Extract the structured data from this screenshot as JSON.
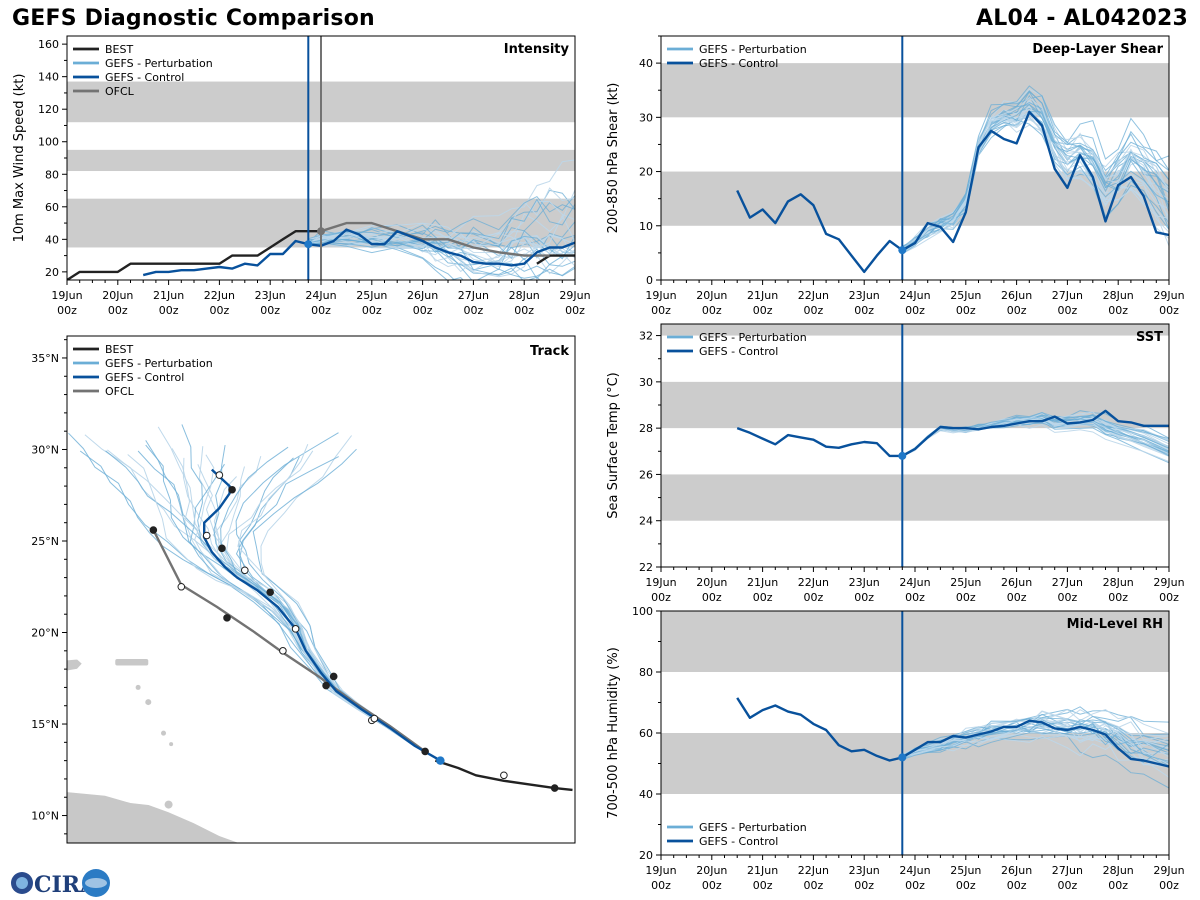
{
  "header": {
    "title": "GEFS Diagnostic Comparison",
    "storm": "AL04 - AL042023"
  },
  "logo": {
    "text": "CIRA"
  },
  "colors": {
    "best": "#222222",
    "perturbation": "#6baed6",
    "perturbation_light": "#bcd7ea",
    "control": "#08519c",
    "ofcl": "#737373",
    "band": "#cccccc",
    "land": "#c8c8c8"
  },
  "time_axis": {
    "ticks": [
      0,
      1,
      2,
      3,
      4,
      5,
      6,
      7,
      8,
      9,
      10
    ],
    "labels": [
      "19Jun",
      "20Jun",
      "21Jun",
      "22Jun",
      "23Jun",
      "24Jun",
      "25Jun",
      "26Jun",
      "27Jun",
      "28Jun",
      "29Jun"
    ],
    "sublabel": "00z",
    "current_day": 4.75,
    "ofcl_start_day": 5.0
  },
  "chart_data": [
    {
      "id": "intensity",
      "type": "line",
      "title": "Intensity",
      "ylabel": "10m Max Wind Speed (kt)",
      "ylim": [
        15,
        165
      ],
      "yticks": [
        20,
        40,
        60,
        80,
        100,
        120,
        140,
        160
      ],
      "bands": [
        [
          35,
          65
        ],
        [
          82,
          95
        ],
        [
          112,
          137
        ]
      ],
      "legend": [
        "BEST",
        "GEFS - Perturbation",
        "GEFS - Control",
        "OFCL"
      ],
      "best": {
        "x": [
          0,
          0.25,
          0.5,
          0.75,
          1,
          1.25,
          1.5,
          1.75,
          2,
          2.25,
          2.5,
          2.75,
          3,
          3.25,
          3.5,
          3.75,
          4,
          4.25,
          4.5,
          4.75,
          5
        ],
        "y": [
          15,
          20,
          20,
          20,
          20,
          25,
          25,
          25,
          25,
          25,
          25,
          25,
          25,
          30,
          30,
          30,
          35,
          40,
          45,
          45,
          45
        ]
      },
      "best_tail": {
        "x": [
          9.25,
          9.5,
          10
        ],
        "y": [
          25,
          30,
          30
        ]
      },
      "control": {
        "x": [
          1.5,
          1.75,
          2,
          2.25,
          2.5,
          2.75,
          3,
          3.25,
          3.5,
          3.75,
          4,
          4.25,
          4.5,
          4.75,
          5,
          5.25,
          5.5,
          5.75,
          6,
          6.25,
          6.5,
          6.75,
          7,
          7.25,
          7.5,
          7.75,
          8,
          8.25,
          8.5,
          8.75,
          9,
          9.25,
          9.5,
          9.75,
          10
        ],
        "y": [
          18,
          20,
          20,
          21,
          21,
          22,
          23,
          22,
          25,
          24,
          31,
          31,
          39,
          37,
          36,
          39,
          46,
          43,
          37,
          37,
          45,
          42,
          39,
          35,
          32,
          30,
          26,
          25,
          25,
          24,
          25,
          32,
          35,
          35,
          38
        ]
      },
      "ofcl": {
        "x": [
          5,
          5.5,
          6,
          6.5,
          7,
          7.5,
          8,
          8.5,
          9,
          9.5
        ],
        "y": [
          45,
          50,
          50,
          45,
          40,
          40,
          35,
          32,
          30,
          30
        ]
      },
      "perturbation_spread": {
        "center": [
          38,
          40,
          41,
          40,
          39,
          38,
          36,
          34,
          32,
          31,
          30,
          32,
          36,
          38,
          38,
          38,
          38
        ],
        "x": [
          4.75,
          5,
          5.5,
          6,
          6.5,
          7,
          7.25,
          7.5,
          7.75,
          8,
          8.5,
          8.75,
          9,
          9.25,
          9.5,
          9.75,
          10
        ],
        "spread_growth": 1.8
      }
    },
    {
      "id": "shear",
      "type": "line",
      "title": "Deep-Layer Shear",
      "ylabel": "200-850 hPa Shear (kt)",
      "ylim": [
        0,
        45
      ],
      "yticks": [
        0,
        10,
        20,
        30,
        40
      ],
      "bands": [
        [
          10,
          20
        ],
        [
          30,
          40
        ]
      ],
      "legend": [
        "GEFS - Perturbation",
        "GEFS - Control"
      ],
      "control": {
        "x": [
          1.5,
          1.75,
          2,
          2.25,
          2.5,
          2.75,
          3,
          3.25,
          3.5,
          3.75,
          4,
          4.25,
          4.5,
          4.75,
          5,
          5.25,
          5.5,
          5.75,
          6,
          6.25,
          6.5,
          6.75,
          7,
          7.25,
          7.5,
          7.75,
          8,
          8.25,
          8.5,
          8.75,
          9,
          9.25,
          9.5,
          9.75,
          10
        ],
        "y": [
          16.5,
          11.5,
          13,
          10.5,
          14.5,
          15.8,
          13.8,
          8.5,
          7.5,
          4.5,
          1.5,
          4.5,
          7.2,
          5.5,
          6.8,
          10.5,
          9.8,
          7,
          12.5,
          24.5,
          27.5,
          26,
          25.2,
          31,
          28.5,
          20.5,
          17,
          23,
          19,
          10.8,
          17.5,
          19,
          15.5,
          8.8,
          8.3
        ]
      },
      "perturbation_spread": {
        "center": [
          5.5,
          7,
          9,
          10,
          11,
          14,
          24,
          29,
          30,
          30,
          32,
          30,
          25,
          22,
          23,
          21,
          17,
          19,
          22,
          20,
          17,
          14
        ],
        "x": [
          4.75,
          5,
          5.25,
          5.5,
          5.75,
          6,
          6.25,
          6.5,
          6.75,
          7,
          7.25,
          7.5,
          7.75,
          8,
          8.25,
          8.5,
          8.75,
          9,
          9.25,
          9.5,
          9.75,
          10
        ],
        "spread_growth": 1.4
      }
    },
    {
      "id": "sst",
      "type": "line",
      "title": "SST",
      "ylabel": "Sea Surface Temp (°C)",
      "ylim": [
        22,
        32.5
      ],
      "yticks": [
        22,
        24,
        26,
        28,
        30,
        32
      ],
      "bands": [
        [
          24,
          26
        ],
        [
          28,
          30
        ],
        [
          32,
          34
        ]
      ],
      "legend": [
        "GEFS - Perturbation",
        "GEFS - Control"
      ],
      "control": {
        "x": [
          1.5,
          1.75,
          2,
          2.25,
          2.5,
          2.75,
          3,
          3.25,
          3.5,
          3.75,
          4,
          4.25,
          4.5,
          4.75,
          5,
          5.25,
          5.5,
          5.75,
          6,
          6.25,
          6.5,
          6.75,
          7,
          7.25,
          7.5,
          7.75,
          8,
          8.25,
          8.5,
          8.75,
          9,
          9.25,
          9.5,
          9.75,
          10
        ],
        "y": [
          28,
          27.8,
          27.55,
          27.3,
          27.7,
          27.6,
          27.5,
          27.2,
          27.15,
          27.3,
          27.4,
          27.35,
          26.8,
          26.8,
          27.1,
          27.6,
          28.05,
          28,
          28,
          27.95,
          28.05,
          28.1,
          28.2,
          28.3,
          28.3,
          28.5,
          28.2,
          28.25,
          28.35,
          28.75,
          28.3,
          28.25,
          28.1,
          28.1,
          28.1
        ]
      },
      "perturbation_spread": {
        "center": [
          26.8,
          27.1,
          27.6,
          28.0,
          27.9,
          27.9,
          28.0,
          28.1,
          28.2,
          28.3,
          28.3,
          28.4,
          28.2,
          28.2,
          28.3,
          28.3,
          28.0,
          27.8,
          27.5,
          27.0
        ],
        "x": [
          4.75,
          5,
          5.25,
          5.5,
          5.75,
          6,
          6.25,
          6.5,
          6.75,
          7,
          7.25,
          7.5,
          7.75,
          8,
          8.25,
          8.5,
          8.75,
          9,
          9.5,
          10
        ],
        "spread_growth": 0.35
      }
    },
    {
      "id": "rh",
      "type": "line",
      "title": "Mid-Level RH",
      "ylabel": "700-500 hPa Humidity (%)",
      "ylim": [
        20,
        100
      ],
      "yticks": [
        20,
        40,
        60,
        80,
        100
      ],
      "bands": [
        [
          40,
          60
        ],
        [
          80,
          100
        ]
      ],
      "legend": [
        "GEFS - Perturbation",
        "GEFS - Control"
      ],
      "control": {
        "x": [
          1.5,
          1.75,
          2,
          2.25,
          2.5,
          2.75,
          3,
          3.25,
          3.5,
          3.75,
          4,
          4.25,
          4.5,
          4.75,
          5,
          5.25,
          5.5,
          5.75,
          6,
          6.25,
          6.5,
          6.75,
          7,
          7.25,
          7.5,
          7.75,
          8,
          8.25,
          8.5,
          8.75,
          9,
          9.25,
          9.5,
          9.75,
          10
        ],
        "y": [
          71.5,
          65,
          67.5,
          69,
          67,
          66,
          63,
          61,
          56,
          54,
          54.5,
          52.5,
          51,
          52,
          54.5,
          57,
          57,
          59,
          58.5,
          59.5,
          60.5,
          62,
          62,
          64,
          63.5,
          61.5,
          61,
          62,
          61,
          59.5,
          55,
          51.5,
          51,
          50,
          49
        ]
      },
      "perturbation_spread": {
        "center": [
          52,
          54,
          56,
          57,
          58,
          59,
          60,
          61,
          61,
          62,
          61,
          60,
          60,
          59,
          58,
          56,
          54,
          53
        ],
        "x": [
          4.75,
          5,
          5.5,
          5.75,
          6,
          6.25,
          6.5,
          7,
          7.25,
          7.5,
          8,
          8.25,
          8.5,
          8.75,
          9,
          9.25,
          9.5,
          10
        ],
        "spread_growth": 1.2
      }
    },
    {
      "id": "track",
      "type": "line",
      "title": "Track",
      "xlim": [
        -65,
        -45
      ],
      "ylim": [
        8.5,
        36.2
      ],
      "yticks": [
        10,
        15,
        20,
        25,
        30,
        35
      ],
      "ytick_labels": [
        "10°N",
        "15°N",
        "20°N",
        "25°N",
        "30°N",
        "35°N"
      ],
      "legend": [
        "BEST",
        "GEFS - Perturbation",
        "GEFS - Control",
        "OFCL"
      ],
      "best": {
        "lon": [
          -45.1,
          -45.8,
          -46.8,
          -47.8,
          -48.9,
          -49.6,
          -50.5
        ],
        "lat": [
          11.4,
          11.5,
          11.7,
          11.9,
          12.2,
          12.6,
          13.0
        ]
      },
      "best_points": {
        "lon": [
          -45.8,
          -47.8
        ],
        "lat": [
          11.5,
          12.2
        ],
        "open": [
          false,
          true
        ]
      },
      "control": {
        "lon": [
          -50.3,
          -51.3,
          -52.3,
          -53.4,
          -54.4,
          -55.0,
          -55.6,
          -56.0,
          -56.7,
          -57.5,
          -58.3,
          -58.8,
          -59.3,
          -59.6,
          -59.6,
          -59.0,
          -58.6,
          -58.6,
          -59.3
        ],
        "lat": [
          13.0,
          13.8,
          14.8,
          15.8,
          16.8,
          17.8,
          19.0,
          20.2,
          21.4,
          22.3,
          23.0,
          23.6,
          24.4,
          25.2,
          26.0,
          26.8,
          27.6,
          28.0,
          28.9
        ]
      },
      "control_points": {
        "lon": [
          -50.3,
          -52.9,
          -54.5,
          -56.0,
          -57.0,
          -58.0,
          -58.9,
          -59.5,
          -58.5,
          -59.0
        ],
        "lat": [
          13.0,
          15.3,
          17.6,
          20.2,
          22.2,
          23.4,
          24.6,
          25.3,
          27.8,
          28.6
        ],
        "open": [
          false,
          true,
          false,
          true,
          false,
          true,
          false,
          true,
          false,
          true
        ]
      },
      "ofcl": {
        "lon": [
          -50.9,
          -52.3,
          -53.7,
          -55.1,
          -56.5,
          -57.7,
          -59.1,
          -60.5,
          -61.6
        ],
        "lat": [
          13.5,
          14.9,
          16.2,
          17.6,
          18.9,
          20.1,
          21.4,
          22.6,
          25.6
        ]
      },
      "ofcl_points": {
        "lon": [
          -50.9,
          -53.0,
          -54.8,
          -56.5,
          -58.7,
          -60.5,
          -61.6
        ],
        "lat": [
          13.5,
          15.2,
          17.1,
          19.0,
          20.8,
          22.5,
          25.6
        ],
        "open": [
          false,
          true,
          false,
          true,
          false,
          true,
          false
        ]
      }
    }
  ]
}
